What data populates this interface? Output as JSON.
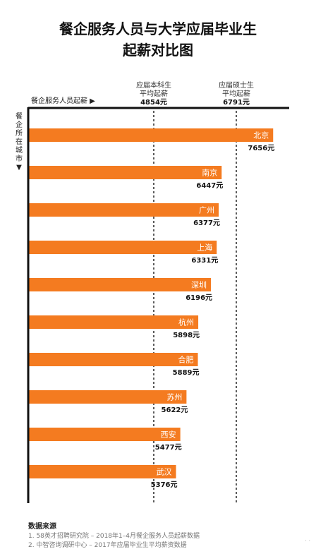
{
  "title_line1": "餐企服务人员与大学应届毕业生",
  "title_line2": "起薪对比图",
  "sources_title": "数据来源",
  "sources": [
    "1. 58英才招聘研究院 – 2018年1–4月餐企服务人员起薪数据",
    "2. 中智咨询调研中心 – 2017年应届毕业生平均薪资数据"
  ],
  "watermark": "· ·",
  "colors": {
    "bar": "#f47b20",
    "axis": "#111111",
    "ref_line": "#333333"
  },
  "chart_data": {
    "type": "bar",
    "orientation": "horizontal",
    "xlabel": "餐企服务人员起薪 ▶",
    "ylabel": "餐企所在城市▼",
    "unit": "元",
    "categories": [
      "北京",
      "南京",
      "广州",
      "上海",
      "深圳",
      "杭州",
      "合肥",
      "苏州",
      "西安",
      "武汉"
    ],
    "values": [
      7656,
      6447,
      6377,
      6331,
      6196,
      5898,
      5889,
      5622,
      5477,
      5376
    ],
    "value_labels": [
      "7656元",
      "6447元",
      "6377元",
      "6331元",
      "6196元",
      "5898元",
      "5889元",
      "5622元",
      "5477元",
      "5376元"
    ],
    "reference_lines": [
      {
        "label_line1": "应届本科生",
        "label_line2": "平均起薪",
        "value": 4854,
        "value_label": "4854元"
      },
      {
        "label_line1": "应届硕士生",
        "label_line2": "平均起薪",
        "value": 6791,
        "value_label": "6791元"
      }
    ]
  }
}
